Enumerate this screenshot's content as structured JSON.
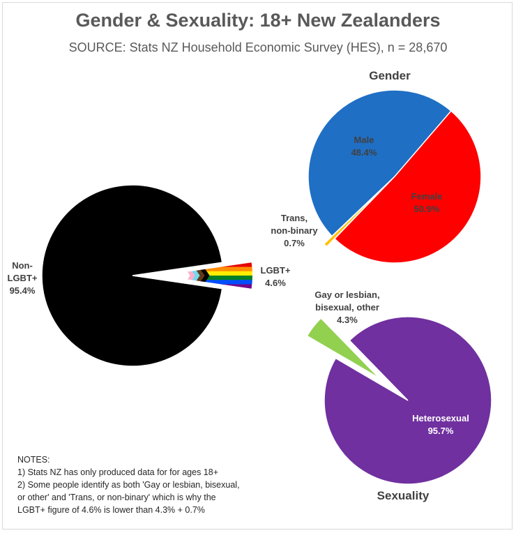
{
  "title": "Gender & Sexuality: 18+ New Zealanders",
  "subtitle": "SOURCE: Stats NZ Household Economic Survey (HES), n = 28,670",
  "chart_data": [
    {
      "type": "pie",
      "title": "",
      "slices": [
        {
          "label": "Non-\nLGBT+\n95.4%",
          "name": "Non-LGBT+",
          "value": 95.4,
          "color": "#000000"
        },
        {
          "label": "LGBT+\n4.6%",
          "name": "LGBT+",
          "value": 4.6,
          "color": "rainbow"
        }
      ]
    },
    {
      "type": "pie",
      "title": "Gender",
      "slices": [
        {
          "label": "Male\n48.4%",
          "name": "Male",
          "value": 48.4,
          "color": "#1f6fc4"
        },
        {
          "label": "Female\n50.9%",
          "name": "Female",
          "value": 50.9,
          "color": "#ff0000"
        },
        {
          "label": "Trans,\nnon-binary\n0.7%",
          "name": "Trans, non-binary",
          "value": 0.7,
          "color": "#ffc000"
        }
      ]
    },
    {
      "type": "pie",
      "title": "Sexuality",
      "slices": [
        {
          "label": "Heterosexual\n95.7%",
          "name": "Heterosexual",
          "value": 95.7,
          "color": "#7030a0"
        },
        {
          "label": "Gay or lesbian,\nbisexual, other\n4.3%",
          "name": "Gay or lesbian, bisexual, other",
          "value": 4.3,
          "color": "#92d050"
        }
      ]
    }
  ],
  "notes": {
    "heading": "NOTES:",
    "line1": "1) Stats NZ has only produced data for for ages 18+",
    "line2": "2) Some people identify as both 'Gay or lesbian, bisexual,",
    "line3": "or other' and 'Trans, or non-binary' which is why the",
    "line4": "LGBT+ figure of 4.6% is lower than 4.3% + 0.7%"
  },
  "colors": {
    "rainbow": [
      "#e40303",
      "#ff8c00",
      "#ffed00",
      "#008026",
      "#004dff",
      "#750787"
    ],
    "progress_flag": [
      "#000000",
      "#613915",
      "#74d7ee",
      "#ffafc8",
      "#ffffff"
    ]
  }
}
